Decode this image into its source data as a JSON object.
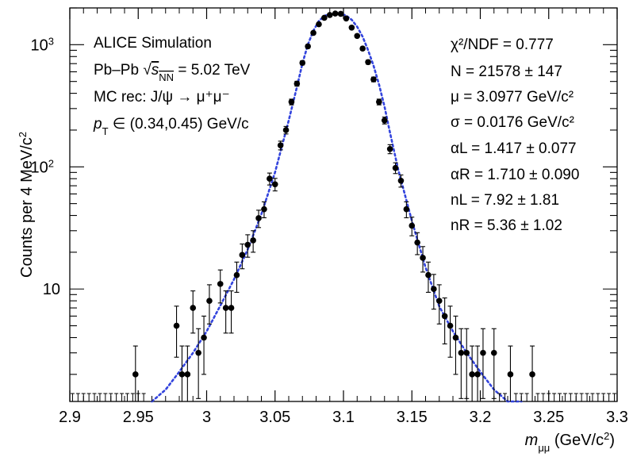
{
  "chart_data": {
    "type": "scatter",
    "xlim": [
      2.9,
      3.3
    ],
    "ylim": [
      1.2,
      2000
    ],
    "yscale": "log",
    "grid": false,
    "x_ticks": [
      "2.9",
      "2.95",
      "3",
      "3.05",
      "3.1",
      "3.15",
      "3.2",
      "3.25",
      "3.3"
    ],
    "y_ticks": [
      {
        "value": 10,
        "label": "10"
      },
      {
        "value": 100,
        "label": "10",
        "exp": "2"
      },
      {
        "value": 1000,
        "label": "10",
        "exp": "3"
      }
    ],
    "xlabel": {
      "main": "m",
      "sub": "μμ",
      "unit": " (GeV/c",
      "sup": "2",
      "close": ")"
    },
    "ylabel": {
      "main": "Counts per 4 MeV/c",
      "sup": "2"
    },
    "left_text": {
      "line1": "ALICE Simulation",
      "line2_prefix": "Pb–Pb ",
      "line2_var": "s",
      "line2_sub": "NN",
      "line2_suffix": " = 5.02 TeV",
      "line3": "MC rec: J/ψ → μ⁺μ⁻",
      "line4_var": "p",
      "line4_sub": "T",
      "line4_rest": " ∈ (0.34,0.45) GeV/c"
    },
    "fit_params": {
      "chi2": "χ²/NDF = 0.777",
      "N": "N = 21578 ± 147",
      "mu": "μ = 3.0977 GeV/c²",
      "sigma": "σ = 0.0176 GeV/c²",
      "alphaL": "αL = 1.417 ± 0.077",
      "alphaR": "αR = 1.710 ± 0.090",
      "nL": "nL = 7.92 ± 1.81",
      "nR": "nR = 5.36 ± 1.02"
    },
    "series": [
      {
        "kind": "data",
        "color": "#000000",
        "x": [
          2.948,
          2.978,
          2.982,
          2.986,
          2.99,
          2.994,
          2.998,
          3.002,
          3.01,
          3.014,
          3.018,
          3.022,
          3.026,
          3.03,
          3.034,
          3.038,
          3.042,
          3.046,
          3.05,
          3.054,
          3.058,
          3.062,
          3.066,
          3.07,
          3.074,
          3.078,
          3.082,
          3.086,
          3.09,
          3.094,
          3.098,
          3.102,
          3.106,
          3.11,
          3.114,
          3.118,
          3.122,
          3.126,
          3.13,
          3.134,
          3.138,
          3.142,
          3.146,
          3.15,
          3.154,
          3.158,
          3.162,
          3.166,
          3.17,
          3.174,
          3.178,
          3.182,
          3.186,
          3.19,
          3.194,
          3.198,
          3.202,
          3.21,
          3.222,
          3.238
        ],
        "y": [
          2,
          5,
          2,
          2,
          7,
          3,
          4,
          8,
          11,
          7,
          7,
          13,
          19,
          23,
          25,
          38,
          45,
          80,
          72,
          150,
          200,
          340,
          480,
          710,
          970,
          1250,
          1470,
          1660,
          1750,
          1800,
          1790,
          1640,
          1380,
          1180,
          930,
          720,
          520,
          340,
          240,
          140,
          98,
          77,
          45,
          33,
          24,
          18,
          13,
          10,
          8,
          6,
          5,
          4,
          3,
          3,
          2,
          2,
          3,
          3,
          2,
          2
        ]
      },
      {
        "kind": "fit",
        "color": "#3344dd",
        "style": "dotted",
        "x": [
          2.96,
          2.97,
          2.98,
          2.99,
          3.0,
          3.01,
          3.02,
          3.03,
          3.04,
          3.05,
          3.06,
          3.066,
          3.07,
          3.074,
          3.078,
          3.082,
          3.086,
          3.09,
          3.094,
          3.098,
          3.102,
          3.106,
          3.11,
          3.114,
          3.118,
          3.122,
          3.126,
          3.13,
          3.134,
          3.14,
          3.15,
          3.16,
          3.17,
          3.18,
          3.19,
          3.2,
          3.21,
          3.22,
          3.23
        ],
        "y": [
          0.9,
          1.5,
          2.1,
          3.0,
          4.5,
          7.3,
          12,
          21,
          41,
          90,
          240,
          450,
          700,
          1000,
          1300,
          1560,
          1720,
          1790,
          1810,
          1800,
          1730,
          1600,
          1400,
          1160,
          900,
          670,
          470,
          310,
          190,
          95,
          36,
          15,
          7.2,
          4.5,
          3.0,
          2.1,
          1.5,
          1.1,
          0.85
        ]
      }
    ]
  }
}
